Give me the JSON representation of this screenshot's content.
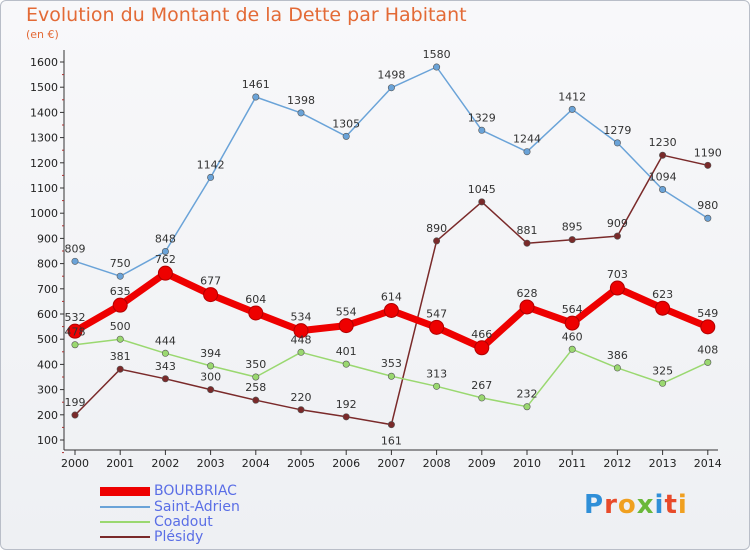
{
  "chart_data": {
    "type": "line",
    "title": "Evolution du Montant de la Dette par Habitant",
    "unit_label": "(en €)",
    "x": [
      "2000",
      "2001",
      "2002",
      "2003",
      "2004",
      "2005",
      "2006",
      "2007",
      "2008",
      "2009",
      "2010",
      "2011",
      "2012",
      "2013",
      "2014"
    ],
    "y_ticks": [
      "100",
      "200",
      "300",
      "400",
      "500",
      "600",
      "700",
      "800",
      "900",
      "1000",
      "1100",
      "1200",
      "1300",
      "1400",
      "1500",
      "1600"
    ],
    "ylim": [
      100,
      1600
    ],
    "grid": false,
    "legend_position": "bottom-left",
    "series": [
      {
        "name": "BOURBRIAC",
        "color": "#ee0000",
        "values": [
          532,
          635,
          762,
          677,
          604,
          534,
          554,
          614,
          547,
          466,
          628,
          564,
          703,
          623,
          549
        ]
      },
      {
        "name": "Saint-Adrien",
        "color": "#6aa3d8",
        "values": [
          809,
          750,
          848,
          1142,
          1461,
          1398,
          1305,
          1498,
          1580,
          1329,
          1244,
          1412,
          1279,
          1094,
          980
        ]
      },
      {
        "name": "Coadout",
        "color": "#9ad870",
        "values": [
          478,
          500,
          444,
          394,
          350,
          448,
          401,
          353,
          313,
          267,
          232,
          460,
          386,
          325,
          408
        ]
      },
      {
        "name": "Plésidy",
        "color": "#7a2a2a",
        "values": [
          199,
          381,
          343,
          300,
          258,
          220,
          192,
          161,
          890,
          1045,
          881,
          895,
          909,
          1230,
          1190
        ]
      }
    ],
    "data_labels": [
      [
        "532",
        "635",
        "762",
        "677",
        "604",
        "534",
        "554",
        "614",
        "547",
        "466",
        "628",
        "564",
        "703",
        "623",
        "549"
      ],
      [
        "809",
        "750",
        "848",
        "1142",
        "1461",
        "1398",
        "1305",
        "1498",
        "1580",
        "1329",
        "1244",
        "1412",
        "1279",
        "1094",
        "980"
      ],
      [
        "478",
        "500",
        "444",
        "394",
        "350",
        "448",
        "401",
        "353",
        "313",
        "267",
        "232",
        "460",
        "386",
        "325",
        "408"
      ],
      [
        "199",
        "381",
        "343",
        "300",
        "258",
        "220",
        "192",
        "161",
        "890",
        "1045",
        "881",
        "895",
        "909",
        "1230",
        "1190"
      ]
    ]
  },
  "logo": {
    "text": "Proxiti"
  }
}
